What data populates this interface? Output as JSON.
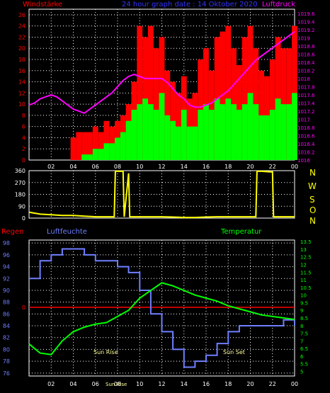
{
  "header": {
    "left_title": "Windstärke",
    "center_title": "24 hour graph date : 14 Oktober 2020",
    "right_title": "Luftdruck"
  },
  "middle": {
    "direction_letters": [
      "N",
      "W",
      "S",
      "O",
      "N"
    ]
  },
  "bottom": {
    "left_label": "Regen",
    "humidity_label": "Luftfeuchte",
    "temperature_label": "Temperatur",
    "sunrise_label": "Sun Rise",
    "sunset_label": "Sun Set",
    "sunrise_axis_label": "Sun Rise"
  },
  "chart_data": [
    {
      "type": "bar",
      "name": "wind-pressure",
      "x_ticks": [
        "02",
        "04",
        "06",
        "08",
        "10",
        "12",
        "14",
        "16",
        "18",
        "20",
        "22",
        "00"
      ],
      "y_left_ticks": [
        "0",
        "2",
        "4",
        "6",
        "8",
        "10",
        "12",
        "14",
        "16",
        "18",
        "20",
        "22",
        "24",
        "26"
      ],
      "y_left_range": [
        0,
        27
      ],
      "y_right_ticks": [
        "1016",
        "1016.2",
        "1016.4",
        "1016.6",
        "1016.8",
        "1017",
        "1017.2",
        "1017.4",
        "1017.6",
        "1017.8",
        "1018",
        "1018.2",
        "1018.4",
        "1018.6",
        "1018.8",
        "1019",
        "1019.2",
        "1019.4",
        "1019.6"
      ],
      "y_right_range": [
        1016,
        1019.7
      ],
      "hours": [
        0,
        0.5,
        1,
        1.5,
        2,
        2.5,
        3,
        3.5,
        4,
        4.5,
        5,
        5.5,
        6,
        6.5,
        7,
        7.5,
        8,
        8.5,
        9,
        9.5,
        10,
        10.5,
        11,
        11.5,
        12,
        12.5,
        13,
        13.5,
        14,
        14.5,
        15,
        15.5,
        16,
        16.5,
        17,
        17.5,
        18,
        18.5,
        19,
        19.5,
        20,
        20.5,
        21,
        21.5,
        22,
        22.5,
        23,
        23.5,
        24
      ],
      "gust_red": [
        0,
        0,
        0,
        0,
        0,
        0,
        0,
        0,
        4,
        5,
        5,
        5,
        6,
        5,
        7,
        6,
        7,
        8,
        10,
        14,
        24,
        22,
        24,
        20,
        22,
        16,
        14,
        12,
        15,
        11,
        12,
        18,
        20,
        16,
        22,
        23,
        24,
        20,
        17,
        22,
        24,
        20,
        16,
        15,
        18,
        22,
        20,
        20,
        24
      ],
      "wind_green": [
        0,
        0,
        0,
        0,
        0,
        0,
        0,
        0,
        0,
        0,
        1,
        1,
        2,
        2,
        3,
        3,
        4,
        5,
        7,
        9,
        10,
        11,
        10,
        9,
        12,
        8,
        7,
        6,
        9,
        6,
        6,
        9,
        10,
        9,
        11,
        10,
        11,
        10,
        9,
        10,
        12,
        10,
        8,
        8,
        9,
        11,
        10,
        10,
        12
      ],
      "pressure": [
        1017.35,
        1017.4,
        1017.5,
        1017.55,
        1017.6,
        1017.55,
        1017.45,
        1017.35,
        1017.25,
        1017.2,
        1017.15,
        1017.25,
        1017.35,
        1017.45,
        1017.55,
        1017.65,
        1017.8,
        1017.95,
        1018.05,
        1018.1,
        1018.05,
        1018.0,
        1018.0,
        1018.0,
        1018.0,
        1017.9,
        1017.75,
        1017.6,
        1017.5,
        1017.35,
        1017.3,
        1017.3,
        1017.35,
        1017.4,
        1017.5,
        1017.6,
        1017.7,
        1017.85,
        1018.0,
        1018.15,
        1018.3,
        1018.45,
        1018.55,
        1018.65,
        1018.75,
        1018.85,
        1018.95,
        1019.05,
        1019.15
      ]
    },
    {
      "type": "line",
      "name": "wind-direction",
      "y_ticks": [
        "0",
        "90",
        "180",
        "270",
        "360"
      ],
      "y_range": [
        0,
        360
      ],
      "hours": [
        0,
        1,
        2,
        3,
        4,
        5,
        6,
        7,
        7.7,
        7.8,
        8,
        8.5,
        8.6,
        9,
        9.1,
        10,
        11,
        12,
        13,
        14,
        15,
        16,
        17,
        18,
        19,
        20,
        20.5,
        20.6,
        21,
        22,
        22.1,
        23,
        24
      ],
      "direction": [
        45,
        30,
        25,
        20,
        20,
        15,
        10,
        10,
        10,
        355,
        355,
        355,
        10,
        340,
        10,
        10,
        10,
        10,
        8,
        5,
        5,
        8,
        10,
        10,
        10,
        10,
        10,
        355,
        355,
        350,
        10,
        10,
        10
      ]
    },
    {
      "type": "line",
      "name": "humidity-temperature",
      "y_left_ticks": [
        "76",
        "78",
        "80",
        "82",
        "84",
        "86",
        "88",
        "90",
        "92",
        "94",
        "96",
        "98"
      ],
      "y_left_range": [
        75.5,
        98.5
      ],
      "y_right_ticks": [
        "5",
        "5.5",
        "6",
        "6.5",
        "7",
        "7.5",
        "8",
        "8.5",
        "9",
        "9.5",
        "10",
        "10.5",
        "11",
        "11.5",
        "12",
        "12.5",
        "13",
        "13.5"
      ],
      "y_right_range": [
        4.7,
        13.6
      ],
      "rain_line_label": "0",
      "hours": [
        0,
        1,
        2,
        3,
        4,
        5,
        6,
        7,
        8,
        9,
        10,
        11,
        12,
        13,
        14,
        15,
        16,
        17,
        18,
        19,
        20,
        21,
        22,
        23,
        24
      ],
      "humidity": [
        92,
        95,
        96,
        97,
        97,
        96,
        95,
        95,
        94,
        93,
        90,
        86,
        83,
        80,
        77,
        78,
        79,
        81,
        83,
        84,
        84,
        84,
        84,
        85,
        84
      ],
      "temperature": [
        6.8,
        6.2,
        6.1,
        7.0,
        7.6,
        7.9,
        8.1,
        8.2,
        8.6,
        9.0,
        9.8,
        10.3,
        10.8,
        10.6,
        10.3,
        10.0,
        9.8,
        9.6,
        9.3,
        9.1,
        8.9,
        8.7,
        8.6,
        8.5,
        8.4
      ]
    }
  ]
}
